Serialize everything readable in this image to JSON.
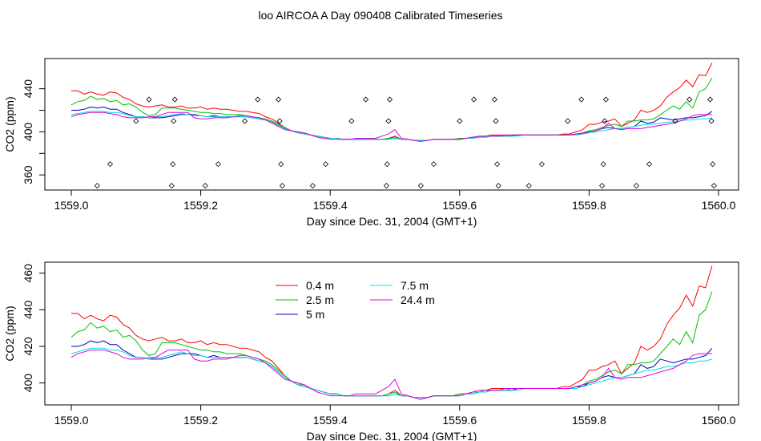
{
  "title": "loo AIRCOA A  Day 090408  Calibrated Timeseries",
  "colors": {
    "0.4 m": "#ff0000",
    "2.5 m": "#00c000",
    "5 m": "#0000c0",
    "7.5 m": "#00e0e0",
    "24.4 m": "#e000e0"
  },
  "chart_data": [
    {
      "type": "scatter",
      "xlabel": "Day since Dec. 31, 2004 (GMT+1)",
      "ylabel": "CO2 (ppm)",
      "xlim": [
        1558.99,
        1560.02
      ],
      "ylim": [
        346,
        468
      ],
      "xticks": [
        1559.0,
        1559.2,
        1559.4,
        1559.6,
        1559.8,
        1560.0
      ],
      "xtick_labels": [
        "1559.0",
        "1559.2",
        "1559.4",
        "1559.6",
        "1559.8",
        "1560.0"
      ],
      "yticks": [
        360,
        400,
        440
      ],
      "ytick_labels": [
        "360",
        "400",
        "440"
      ],
      "lines_from_panel": 1,
      "points": [
        [
          1559.04,
          350
        ],
        [
          1559.06,
          370
        ],
        [
          1559.1,
          410
        ],
        [
          1559.12,
          430
        ],
        [
          1559.155,
          350
        ],
        [
          1559.157,
          370
        ],
        [
          1559.158,
          410
        ],
        [
          1559.16,
          430
        ],
        [
          1559.207,
          350
        ],
        [
          1559.227,
          370
        ],
        [
          1559.268,
          410
        ],
        [
          1559.288,
          430
        ],
        [
          1559.32,
          430
        ],
        [
          1559.322,
          410
        ],
        [
          1559.324,
          370
        ],
        [
          1559.326,
          350
        ],
        [
          1559.373,
          350
        ],
        [
          1559.393,
          370
        ],
        [
          1559.433,
          410
        ],
        [
          1559.455,
          430
        ],
        [
          1559.487,
          350
        ],
        [
          1559.488,
          370
        ],
        [
          1559.49,
          410
        ],
        [
          1559.492,
          430
        ],
        [
          1559.54,
          350
        ],
        [
          1559.56,
          370
        ],
        [
          1559.6,
          410
        ],
        [
          1559.622,
          430
        ],
        [
          1559.654,
          430
        ],
        [
          1559.656,
          410
        ],
        [
          1559.658,
          370
        ],
        [
          1559.66,
          350
        ],
        [
          1559.707,
          350
        ],
        [
          1559.727,
          370
        ],
        [
          1559.767,
          410
        ],
        [
          1559.788,
          430
        ],
        [
          1559.82,
          350
        ],
        [
          1559.822,
          370
        ],
        [
          1559.824,
          410
        ],
        [
          1559.826,
          430
        ],
        [
          1559.873,
          350
        ],
        [
          1559.893,
          370
        ],
        [
          1559.933,
          410
        ],
        [
          1559.955,
          430
        ],
        [
          1559.987,
          430
        ],
        [
          1559.989,
          410
        ],
        [
          1559.991,
          370
        ],
        [
          1559.993,
          350
        ]
      ]
    },
    {
      "type": "line",
      "xlabel": "Day since Dec. 31, 2004 (GMT+1)",
      "ylabel": "CO2 (ppm)",
      "xlim": [
        1558.99,
        1560.02
      ],
      "ylim": [
        388,
        466
      ],
      "xticks": [
        1559.0,
        1559.2,
        1559.4,
        1559.6,
        1559.8,
        1560.0
      ],
      "xtick_labels": [
        "1559.0",
        "1559.2",
        "1559.4",
        "1559.6",
        "1559.8",
        "1560.0"
      ],
      "yticks": [
        400,
        420,
        440,
        460
      ],
      "ytick_labels": [
        "400",
        "420",
        "440",
        "460"
      ],
      "legend": "top-center",
      "x": [
        1559.0,
        1559.01,
        1559.02,
        1559.03,
        1559.04,
        1559.05,
        1559.06,
        1559.07,
        1559.08,
        1559.09,
        1559.1,
        1559.11,
        1559.12,
        1559.13,
        1559.14,
        1559.15,
        1559.16,
        1559.17,
        1559.18,
        1559.19,
        1559.2,
        1559.21,
        1559.22,
        1559.23,
        1559.24,
        1559.25,
        1559.26,
        1559.27,
        1559.28,
        1559.29,
        1559.3,
        1559.31,
        1559.32,
        1559.33,
        1559.34,
        1559.35,
        1559.36,
        1559.37,
        1559.38,
        1559.39,
        1559.4,
        1559.41,
        1559.42,
        1559.43,
        1559.44,
        1559.45,
        1559.46,
        1559.47,
        1559.48,
        1559.49,
        1559.5,
        1559.51,
        1559.52,
        1559.53,
        1559.54,
        1559.55,
        1559.56,
        1559.57,
        1559.58,
        1559.59,
        1559.6,
        1559.61,
        1559.62,
        1559.63,
        1559.64,
        1559.65,
        1559.66,
        1559.67,
        1559.68,
        1559.69,
        1559.7,
        1559.71,
        1559.72,
        1559.73,
        1559.74,
        1559.75,
        1559.76,
        1559.77,
        1559.78,
        1559.79,
        1559.8,
        1559.81,
        1559.82,
        1559.83,
        1559.84,
        1559.85,
        1559.86,
        1559.87,
        1559.88,
        1559.89,
        1559.9,
        1559.91,
        1559.92,
        1559.93,
        1559.94,
        1559.95,
        1559.96,
        1559.97,
        1559.98,
        1559.99
      ],
      "series": [
        {
          "name": "0.4 m",
          "values": [
            438,
            438,
            435,
            437,
            435,
            434,
            437,
            436,
            432,
            430,
            426,
            424,
            423,
            424,
            425,
            423,
            423,
            424,
            422,
            422,
            423,
            421,
            422,
            421,
            421,
            420,
            419,
            419,
            418,
            417,
            414,
            412,
            408,
            404,
            401,
            400,
            399,
            397,
            396,
            395,
            394,
            394,
            393,
            393,
            393,
            393,
            393,
            393,
            393,
            394,
            396,
            393,
            393,
            392,
            392,
            392,
            393,
            393,
            393,
            393,
            394,
            394,
            395,
            395,
            396,
            397,
            397,
            397,
            397,
            397,
            397,
            397,
            397,
            397,
            397,
            397,
            398,
            398,
            400,
            402,
            407,
            407,
            409,
            410,
            412,
            405,
            408,
            411,
            420,
            418,
            420,
            424,
            432,
            437,
            441,
            448,
            442,
            453,
            452,
            464
          ]
        },
        {
          "name": "2.5 m",
          "values": [
            425,
            428,
            429,
            433,
            430,
            431,
            428,
            429,
            425,
            426,
            423,
            418,
            415,
            416,
            422,
            422,
            422,
            421,
            420,
            419,
            418,
            418,
            417,
            417,
            416,
            416,
            416,
            415,
            414,
            413,
            412,
            410,
            407,
            404,
            401,
            399,
            399,
            397,
            396,
            395,
            394,
            394,
            393,
            393,
            393,
            393,
            393,
            393,
            393,
            394,
            395,
            393,
            393,
            392,
            392,
            392,
            393,
            393,
            393,
            393,
            394,
            394,
            395,
            395,
            396,
            396,
            396,
            396,
            397,
            397,
            397,
            397,
            397,
            397,
            397,
            397,
            397,
            397,
            398,
            399,
            401,
            402,
            404,
            406,
            407,
            405,
            410,
            410,
            411,
            411,
            412,
            416,
            420,
            424,
            421,
            428,
            422,
            437,
            440,
            450
          ]
        },
        {
          "name": "5 m",
          "values": [
            420,
            420,
            421,
            423,
            422,
            423,
            421,
            421,
            418,
            416,
            414,
            414,
            413,
            413,
            413,
            414,
            415,
            416,
            416,
            416,
            415,
            414,
            415,
            414,
            414,
            414,
            414,
            414,
            413,
            412,
            411,
            409,
            406,
            403,
            401,
            399,
            398,
            397,
            396,
            395,
            394,
            394,
            393,
            393,
            393,
            393,
            393,
            393,
            393,
            393,
            394,
            393,
            393,
            392,
            392,
            392,
            393,
            393,
            393,
            393,
            393,
            394,
            394,
            395,
            395,
            396,
            396,
            396,
            396,
            397,
            397,
            397,
            397,
            397,
            397,
            397,
            397,
            397,
            398,
            398,
            400,
            401,
            403,
            404,
            403,
            403,
            404,
            405,
            410,
            408,
            409,
            413,
            412,
            411,
            412,
            413,
            413,
            414,
            415,
            419
          ]
        },
        {
          "name": "7.5 m",
          "values": [
            416,
            417,
            418,
            419,
            419,
            419,
            418,
            418,
            417,
            415,
            414,
            414,
            413,
            414,
            414,
            415,
            416,
            417,
            416,
            415,
            415,
            414,
            414,
            414,
            414,
            414,
            414,
            414,
            413,
            412,
            411,
            409,
            406,
            403,
            401,
            399,
            398,
            397,
            396,
            395,
            394,
            394,
            393,
            393,
            393,
            393,
            393,
            393,
            393,
            393,
            394,
            393,
            393,
            392,
            392,
            392,
            393,
            393,
            393,
            393,
            393,
            394,
            394,
            395,
            395,
            396,
            396,
            396,
            396,
            396,
            397,
            397,
            397,
            397,
            397,
            397,
            397,
            397,
            397,
            398,
            399,
            400,
            401,
            402,
            403,
            403,
            404,
            405,
            406,
            407,
            407,
            408,
            409,
            409,
            410,
            411,
            411,
            412,
            412,
            413
          ]
        },
        {
          "name": "24.4 m",
          "values": [
            414,
            416,
            417,
            418,
            418,
            418,
            417,
            416,
            414,
            413,
            413,
            413,
            414,
            414,
            416,
            418,
            418,
            418,
            418,
            413,
            412,
            412,
            413,
            413,
            413,
            414,
            415,
            415,
            414,
            413,
            411,
            408,
            405,
            402,
            401,
            400,
            399,
            397,
            395,
            394,
            393,
            393,
            393,
            393,
            394,
            394,
            394,
            394,
            396,
            398,
            402,
            394,
            393,
            392,
            391,
            392,
            393,
            393,
            393,
            393,
            393,
            394,
            395,
            396,
            396,
            396,
            396,
            397,
            397,
            397,
            397,
            397,
            397,
            397,
            397,
            397,
            397,
            397,
            398,
            399,
            400,
            401,
            403,
            408,
            403,
            402,
            403,
            403,
            403,
            404,
            405,
            406,
            407,
            408,
            410,
            412,
            415,
            416,
            416,
            416
          ]
        }
      ]
    }
  ]
}
